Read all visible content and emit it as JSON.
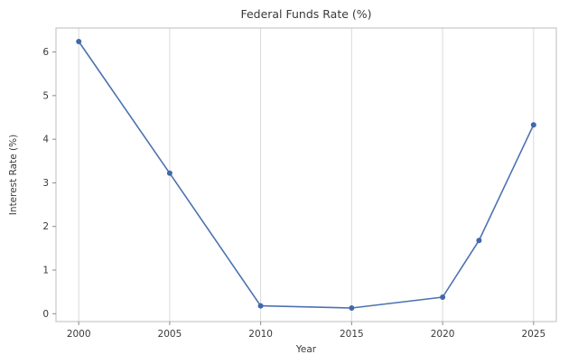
{
  "chart": {
    "title": "Federal Funds Rate (%)",
    "xlabel": "Year",
    "ylabel": "Interest Rate (%)"
  },
  "chart_data": {
    "type": "line",
    "title": "Federal Funds Rate (%)",
    "xlabel": "Year",
    "ylabel": "Interest Rate (%)",
    "x": [
      2000,
      2005,
      2010,
      2015,
      2020,
      2022,
      2025
    ],
    "y": [
      6.24,
      3.22,
      0.18,
      0.13,
      0.38,
      1.68,
      4.33
    ],
    "x_ticks": [
      "2000",
      "2005",
      "2010",
      "2015",
      "2020",
      "2025"
    ],
    "x_tick_values": [
      2000,
      2005,
      2010,
      2015,
      2020,
      2025
    ],
    "y_ticks": [
      "0",
      "1",
      "2",
      "3",
      "4",
      "5",
      "6"
    ],
    "y_tick_values": [
      0,
      1,
      2,
      3,
      4,
      5,
      6
    ],
    "xlim": [
      1998.75,
      2026.25
    ],
    "ylim": [
      -0.18,
      6.55
    ],
    "grid": "vertical",
    "legend": "none",
    "line_color": "#4c72b0",
    "marker_color": "#4068ac",
    "grid_color": "#d9d9d9",
    "spine_color": "#c7c7c7",
    "tick_color": "#8a8a8a",
    "text_color": "#3a3a3a",
    "background_color": "#ffffff"
  }
}
